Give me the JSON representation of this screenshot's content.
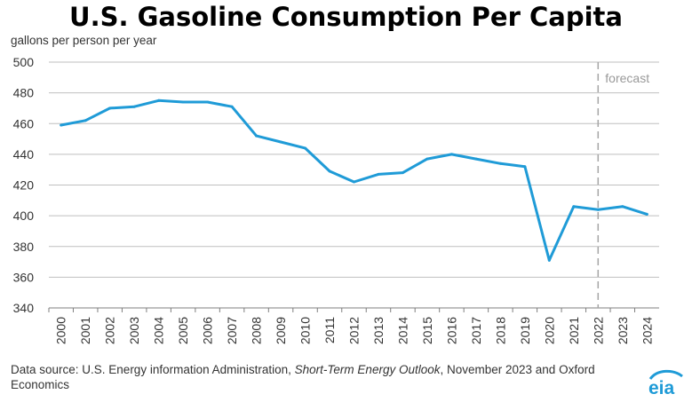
{
  "title": "U.S. Gasoline Consumption Per Capita",
  "source": {
    "prefix": "Data source: U.S. Energy information Administration, ",
    "publication": "Short-Term Energy Outlook",
    "suffix": ", November 2023 and Oxford Economics"
  },
  "logo_text": "eia",
  "colors": {
    "line": "#1f9bd7",
    "grid": "#bfbfbf",
    "forecast_line": "#a6a6a6",
    "logo": "#1f9bd7"
  },
  "chart_data": {
    "type": "line",
    "title": "U.S. Gasoline Consumption Per Capita",
    "ylabel": "gallons per person per year",
    "xlabel": "",
    "ylim": [
      340,
      500
    ],
    "yticks": [
      340,
      360,
      380,
      400,
      420,
      440,
      460,
      480,
      500
    ],
    "grid": true,
    "x": [
      "2000",
      "2001",
      "2002",
      "2003",
      "2004",
      "2005",
      "2006",
      "2007",
      "2008",
      "2009",
      "2010",
      "2011",
      "2012",
      "2013",
      "2014",
      "2015",
      "2016",
      "2017",
      "2018",
      "2019",
      "2020",
      "2021",
      "2022",
      "2023",
      "2024"
    ],
    "series": [
      {
        "values": [
          459,
          462,
          470,
          471,
          475,
          474,
          474,
          471,
          452,
          448,
          444,
          429,
          422,
          427,
          428,
          437,
          440,
          437,
          434,
          432,
          371,
          406,
          404,
          406,
          401
        ]
      }
    ],
    "annotations": [
      {
        "text": "forecast",
        "at_x": "2022.5"
      }
    ]
  }
}
